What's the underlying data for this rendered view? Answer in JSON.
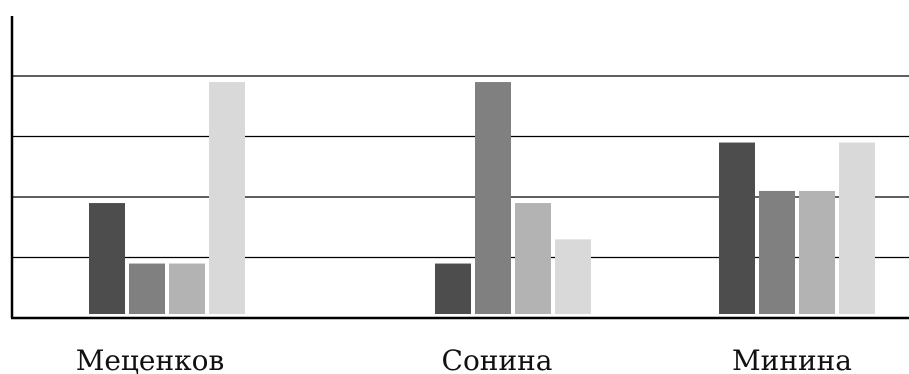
{
  "chart_data": {
    "type": "bar",
    "title": "",
    "xlabel": "",
    "ylabel": "",
    "categories": [
      "Меценков",
      "Сонина",
      "Минина"
    ],
    "series": [
      {
        "values": [
          1.9,
          0.9,
          2.9
        ],
        "color": "#4d4d4d"
      },
      {
        "values": [
          0.9,
          3.9,
          2.1
        ],
        "color": "#808080"
      },
      {
        "values": [
          0.9,
          1.9,
          2.1
        ],
        "color": "#b3b3b3"
      },
      {
        "values": [
          3.9,
          1.3,
          2.9
        ],
        "color": "#d9d9d9"
      }
    ],
    "ylim": [
      0,
      4
    ],
    "y_ticks_labeled": false,
    "grid": true,
    "legend": "none"
  }
}
